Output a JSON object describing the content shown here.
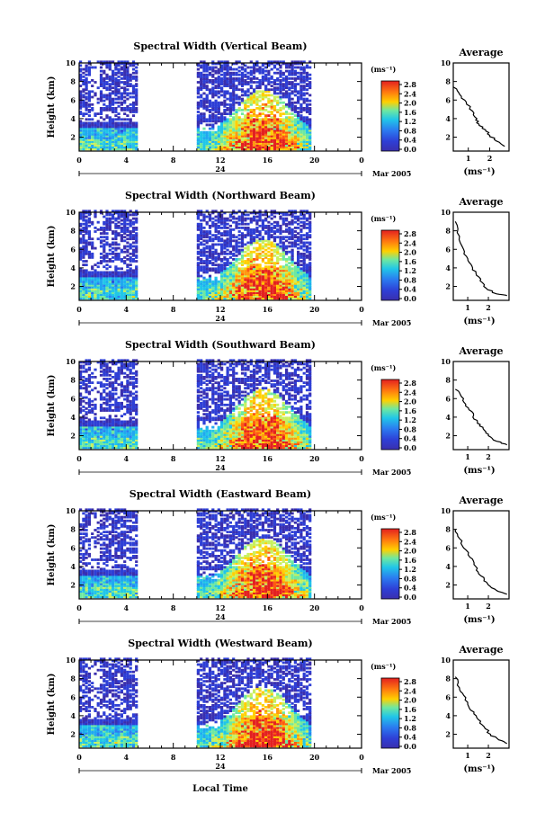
{
  "figure": {
    "y_label": "Height (km)",
    "x_label": "Local Time",
    "date_label": "Mar 2005",
    "day_label": "24",
    "avg_title": "Average",
    "unit_label": "(ms⁻¹)",
    "colorbar_ticks": [
      "2.8",
      "2.4",
      "2.0",
      "1.6",
      "1.2",
      "0.8",
      "0.4",
      "0.0"
    ],
    "colors": {
      "low": "#2e3fd6",
      "mid": "#21c6e8",
      "high": "#ffd000",
      "max": "#e32020"
    }
  },
  "chart_data": [
    {
      "type": "heatmap",
      "title": "Spectral Width (Vertical Beam)",
      "xlabel": "Local Time",
      "ylabel": "Height (km)",
      "xlim": [
        0,
        24
      ],
      "ylim": [
        0.5,
        10
      ],
      "xticks": [
        "0",
        "4",
        "8",
        "12",
        "16",
        "20",
        "0"
      ],
      "yticks": [
        "2",
        "4",
        "6",
        "8",
        "10"
      ],
      "data_gaps": [
        [
          5,
          10
        ],
        [
          19.7,
          24
        ]
      ],
      "avg_profile": {
        "xticks": [
          "1",
          "2"
        ],
        "xlim": [
          0.3,
          2.9
        ],
        "points": [
          [
            0.3,
            7.4
          ],
          [
            0.6,
            6.6
          ],
          [
            0.9,
            5.8
          ],
          [
            1.2,
            4.8
          ],
          [
            1.4,
            4.0
          ],
          [
            1.5,
            3.4
          ],
          [
            1.8,
            2.8
          ],
          [
            2.0,
            2.2
          ],
          [
            2.3,
            1.6
          ],
          [
            2.7,
            1.0
          ]
        ]
      }
    },
    {
      "type": "heatmap",
      "title": "Spectral Width (Northward Beam)",
      "xlabel": "Local Time",
      "ylabel": "Height (km)",
      "xlim": [
        0,
        24
      ],
      "ylim": [
        0.5,
        10
      ],
      "xticks": [
        "0",
        "4",
        "8",
        "12",
        "16",
        "20",
        "0"
      ],
      "yticks": [
        "2",
        "4",
        "6",
        "8",
        "10"
      ],
      "data_gaps": [
        [
          5,
          10
        ],
        [
          19.7,
          24
        ]
      ],
      "avg_profile": {
        "xticks": [
          "1",
          "2"
        ],
        "xlim": [
          0.3,
          3.0
        ],
        "points": [
          [
            0.4,
            9.0
          ],
          [
            0.6,
            7.4
          ],
          [
            0.8,
            6.0
          ],
          [
            1.0,
            5.0
          ],
          [
            1.2,
            4.2
          ],
          [
            1.4,
            3.4
          ],
          [
            1.6,
            2.6
          ],
          [
            1.9,
            1.8
          ],
          [
            2.4,
            1.2
          ],
          [
            2.9,
            1.0
          ]
        ]
      }
    },
    {
      "type": "heatmap",
      "title": "Spectral Width (Southward Beam)",
      "xlabel": "Local Time",
      "ylabel": "Height (km)",
      "xlim": [
        0,
        24
      ],
      "ylim": [
        0.5,
        10
      ],
      "xticks": [
        "0",
        "4",
        "8",
        "12",
        "16",
        "20",
        "0"
      ],
      "yticks": [
        "2",
        "4",
        "6",
        "8",
        "10"
      ],
      "data_gaps": [
        [
          5,
          10
        ],
        [
          19.7,
          24
        ]
      ],
      "avg_profile": {
        "xticks": [
          "1",
          "2"
        ],
        "xlim": [
          0.3,
          3.0
        ],
        "points": [
          [
            0.4,
            7.0
          ],
          [
            0.7,
            6.2
          ],
          [
            0.9,
            5.4
          ],
          [
            1.2,
            4.6
          ],
          [
            1.3,
            3.8
          ],
          [
            1.6,
            3.2
          ],
          [
            1.8,
            2.6
          ],
          [
            2.0,
            2.0
          ],
          [
            2.4,
            1.4
          ],
          [
            2.9,
            1.0
          ]
        ]
      }
    },
    {
      "type": "heatmap",
      "title": "Spectral Width (Eastward Beam)",
      "xlabel": "Local Time",
      "ylabel": "Height (km)",
      "xlim": [
        0,
        24
      ],
      "ylim": [
        0.5,
        10
      ],
      "xticks": [
        "0",
        "4",
        "8",
        "12",
        "16",
        "20",
        "0"
      ],
      "yticks": [
        "2",
        "4",
        "6",
        "8",
        "10"
      ],
      "data_gaps": [
        [
          5,
          10
        ],
        [
          19.7,
          24
        ]
      ],
      "avg_profile": {
        "xticks": [
          "1",
          "2"
        ],
        "xlim": [
          0.3,
          3.0
        ],
        "points": [
          [
            0.4,
            8.0
          ],
          [
            0.6,
            7.0
          ],
          [
            0.8,
            6.0
          ],
          [
            1.1,
            5.0
          ],
          [
            1.3,
            4.2
          ],
          [
            1.5,
            3.4
          ],
          [
            1.8,
            2.6
          ],
          [
            2.0,
            2.0
          ],
          [
            2.4,
            1.4
          ],
          [
            2.9,
            1.0
          ]
        ]
      }
    },
    {
      "type": "heatmap",
      "title": "Spectral Width (Westward Beam)",
      "xlabel": "Local Time",
      "ylabel": "Height (km)",
      "xlim": [
        0,
        24
      ],
      "ylim": [
        0.5,
        10
      ],
      "xticks": [
        "0",
        "4",
        "8",
        "12",
        "16",
        "20",
        "0"
      ],
      "yticks": [
        "2",
        "4",
        "6",
        "8",
        "10"
      ],
      "data_gaps": [
        [
          5,
          10
        ],
        [
          19.7,
          24
        ]
      ],
      "avg_profile": {
        "xticks": [
          "1",
          "2"
        ],
        "xlim": [
          0.3,
          3.0
        ],
        "points": [
          [
            0.4,
            8.2
          ],
          [
            0.6,
            7.0
          ],
          [
            0.8,
            6.2
          ],
          [
            1.0,
            5.2
          ],
          [
            1.3,
            4.4
          ],
          [
            1.5,
            3.6
          ],
          [
            1.8,
            2.8
          ],
          [
            2.1,
            2.0
          ],
          [
            2.5,
            1.4
          ],
          [
            2.9,
            1.0
          ]
        ]
      }
    }
  ]
}
